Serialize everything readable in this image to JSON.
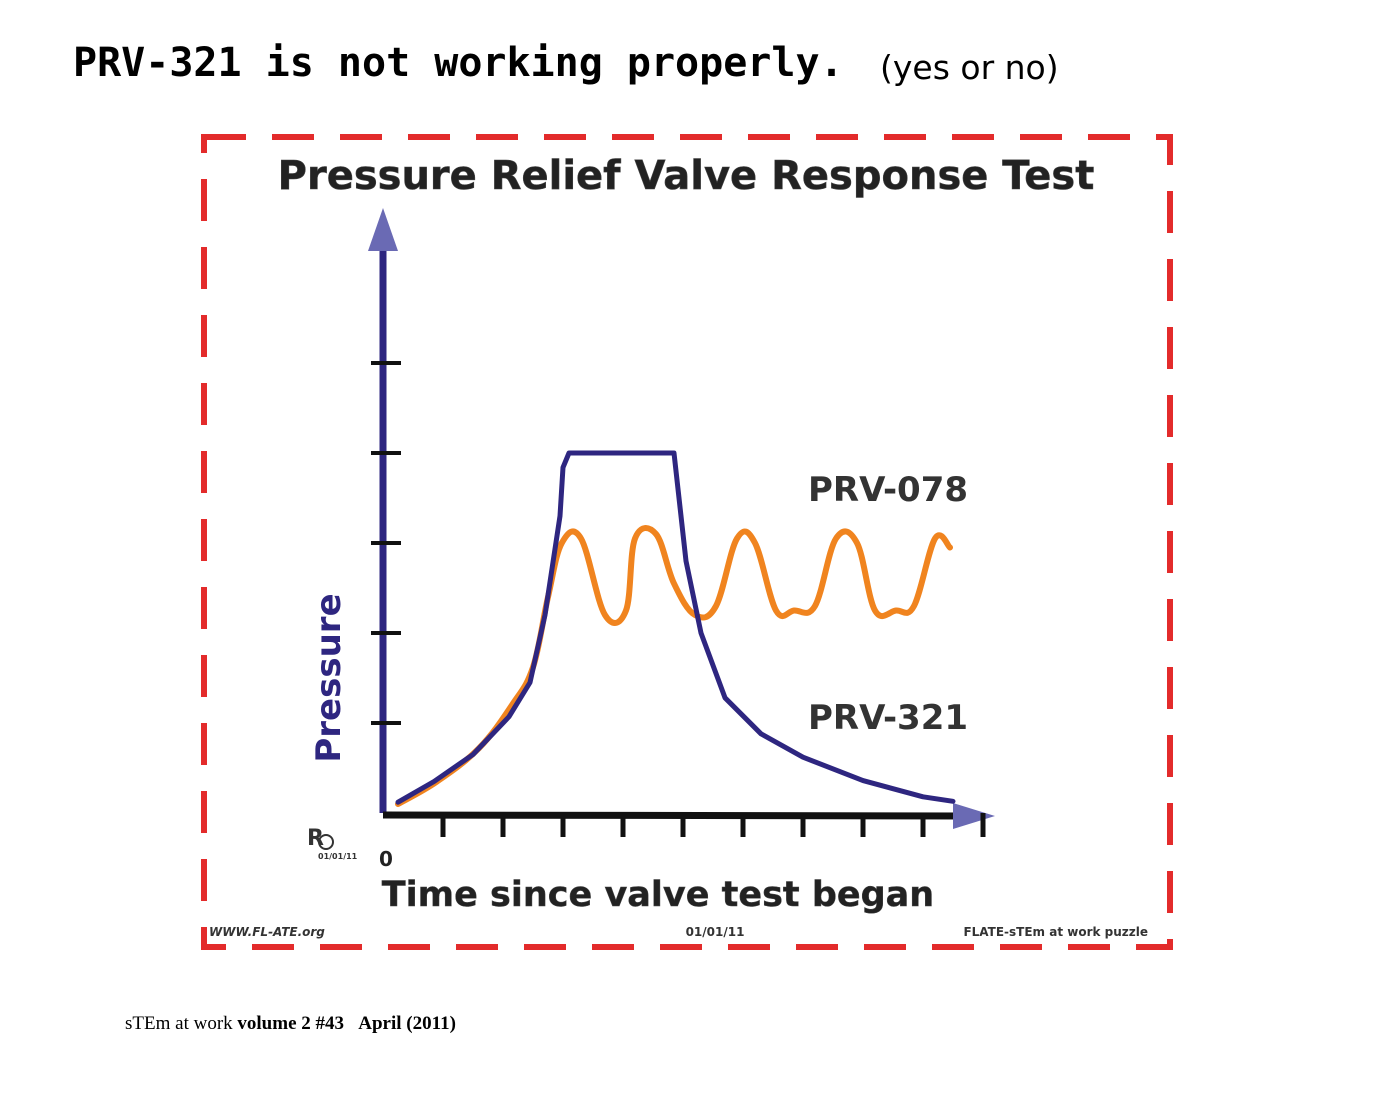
{
  "header": {
    "question": "PRV-321 is not working properly.",
    "hint": "(yes or no)"
  },
  "footer": {
    "publication": "sTEm at work",
    "issue": "volume 2 #43",
    "date": "April (2011)"
  },
  "colors": {
    "frame": "#e32b2b",
    "axis": "#2e2680",
    "prv321": "#2e2680",
    "prv078": "#f0841f",
    "arrowhead": "#6a6ab4"
  },
  "chart_data": {
    "type": "line",
    "title": "Pressure Relief Valve Response Test",
    "xlabel": "Time since valve test began",
    "ylabel": "Pressure",
    "x_origin_label": "0",
    "xlim": [
      0,
      10
    ],
    "ylim": [
      0,
      7
    ],
    "x_ticks": [
      1,
      2,
      3,
      4,
      5,
      6,
      7,
      8,
      9,
      10
    ],
    "y_ticks": [
      1,
      2,
      3,
      4,
      5
    ],
    "series": [
      {
        "name": "PRV-321",
        "color": "#2e2680",
        "x": [
          0.25,
          0.85,
          1.5,
          2.1,
          2.45,
          2.7,
          2.95,
          3.0,
          3.1,
          3.5,
          4.5,
          4.85,
          5.05,
          5.3,
          5.7,
          6.3,
          7.0,
          8.0,
          9.0,
          9.5
        ],
        "y": [
          0.12,
          0.35,
          0.65,
          1.07,
          1.45,
          2.2,
          3.3,
          3.84,
          4.0,
          4.0,
          4.0,
          4.0,
          2.8,
          2.0,
          1.28,
          0.88,
          0.62,
          0.36,
          0.18,
          0.13
        ]
      },
      {
        "name": "PRV-078",
        "color": "#f0841f",
        "x": [
          0.25,
          0.9,
          1.6,
          2.15,
          2.5,
          2.75,
          2.98,
          3.3,
          3.7,
          4.05,
          4.2,
          4.55,
          4.85,
          5.2,
          5.55,
          5.9,
          6.2,
          6.55,
          6.85,
          7.2,
          7.55,
          7.9,
          8.2,
          8.55,
          8.85,
          9.2,
          9.45
        ],
        "y": [
          0.1,
          0.35,
          0.72,
          1.2,
          1.62,
          2.4,
          3.0,
          3.05,
          2.2,
          2.25,
          3.05,
          3.1,
          2.55,
          2.2,
          2.3,
          3.05,
          3.0,
          2.25,
          2.25,
          2.3,
          3.05,
          3.0,
          2.25,
          2.25,
          2.3,
          3.05,
          2.95
        ]
      }
    ],
    "annotations": [
      "PRV-078",
      "PRV-321"
    ],
    "sheet_labels": {
      "website": "WWW.FL-ATE.org",
      "date": "01/01/11",
      "credit": "FLATE-sTEm at work puzzle",
      "author_date": "01/01/11"
    },
    "grid": false,
    "legend": "direct labels on the right of the lines"
  }
}
